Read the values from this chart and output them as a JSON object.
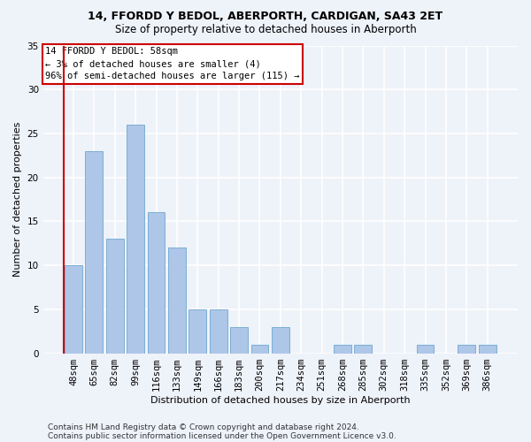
{
  "title1": "14, FFORDD Y BEDOL, ABERPORTH, CARDIGAN, SA43 2ET",
  "title2": "Size of property relative to detached houses in Aberporth",
  "xlabel": "Distribution of detached houses by size in Aberporth",
  "ylabel": "Number of detached properties",
  "categories": [
    "48sqm",
    "65sqm",
    "82sqm",
    "99sqm",
    "116sqm",
    "133sqm",
    "149sqm",
    "166sqm",
    "183sqm",
    "200sqm",
    "217sqm",
    "234sqm",
    "251sqm",
    "268sqm",
    "285sqm",
    "302sqm",
    "318sqm",
    "335sqm",
    "352sqm",
    "369sqm",
    "386sqm"
  ],
  "values": [
    10,
    23,
    13,
    26,
    16,
    12,
    5,
    5,
    3,
    1,
    3,
    0,
    0,
    1,
    1,
    0,
    0,
    1,
    0,
    1,
    1
  ],
  "bar_color": "#aec6e8",
  "bar_edge_color": "#7bafd4",
  "annotation_text_line1": "14 FFORDD Y BEDOL: 58sqm",
  "annotation_text_line2": "← 3% of detached houses are smaller (4)",
  "annotation_text_line3": "96% of semi-detached houses are larger (115) →",
  "annotation_box_color": "#ffffff",
  "annotation_box_edge_color": "#cc0000",
  "footer1": "Contains HM Land Registry data © Crown copyright and database right 2024.",
  "footer2": "Contains public sector information licensed under the Open Government Licence v3.0.",
  "ylim": [
    0,
    35
  ],
  "yticks": [
    0,
    5,
    10,
    15,
    20,
    25,
    30,
    35
  ],
  "bg_color": "#eef2f9",
  "grid_color": "#ffffff",
  "title1_fontsize": 9,
  "title2_fontsize": 8.5,
  "axis_label_fontsize": 8,
  "tick_fontsize": 7.5,
  "footer_fontsize": 6.5,
  "annotation_fontsize": 7.5
}
